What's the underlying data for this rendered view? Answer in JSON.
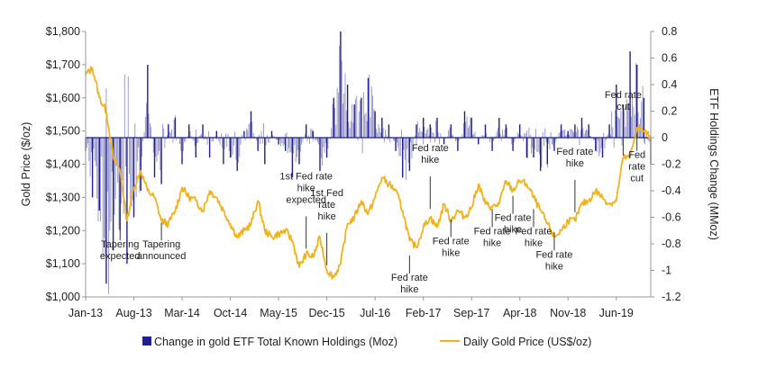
{
  "chart_data": {
    "type": "line",
    "title": "",
    "ylabel": "Gold Price ($/oz)",
    "y2label": "ETF Holdings Change (MMoz)",
    "ylim": [
      1000,
      1800
    ],
    "y2lim": [
      -1.2,
      0.8
    ],
    "y_ticks": [
      "$1,000",
      "$1,100",
      "$1,200",
      "$1,300",
      "$1,400",
      "$1,500",
      "$1,600",
      "$1,700",
      "$1,800"
    ],
    "y2_ticks": [
      "-1.2",
      "-1",
      "-0.8",
      "-0.6",
      "-0.4",
      "-0.2",
      "0",
      "0.2",
      "0.4",
      "0.6",
      "0.8"
    ],
    "x_ticks": [
      {
        "date": "2013-01",
        "label": "Jan-13"
      },
      {
        "date": "2013-08",
        "label": "Aug-13"
      },
      {
        "date": "2014-03",
        "label": "Mar-14"
      },
      {
        "date": "2014-10",
        "label": "Oct-14"
      },
      {
        "date": "2015-05",
        "label": "May-15"
      },
      {
        "date": "2015-12",
        "label": "Dec-15"
      },
      {
        "date": "2016-07",
        "label": "Jul-16"
      },
      {
        "date": "2017-02",
        "label": "Feb-17"
      },
      {
        "date": "2017-09",
        "label": "Sep-17"
      },
      {
        "date": "2018-04",
        "label": "Apr-18"
      },
      {
        "date": "2018-11",
        "label": "Nov-18"
      },
      {
        "date": "2019-06",
        "label": "Jun-19"
      }
    ],
    "x_range": [
      "2013-01",
      "2019-11"
    ],
    "series": [
      {
        "name": "Daily Gold Price (US$/oz)",
        "axis": "left",
        "color": "#f2b21a",
        "points": [
          [
            "2013-01",
            1670
          ],
          [
            "2013-02",
            1690
          ],
          [
            "2013-03",
            1600
          ],
          [
            "2013-04",
            1560
          ],
          [
            "2013-05",
            1420
          ],
          [
            "2013-06",
            1380
          ],
          [
            "2013-07",
            1230
          ],
          [
            "2013-08",
            1330
          ],
          [
            "2013-09",
            1380
          ],
          [
            "2013-10",
            1320
          ],
          [
            "2013-11",
            1300
          ],
          [
            "2013-12",
            1230
          ],
          [
            "2014-01",
            1220
          ],
          [
            "2014-02",
            1260
          ],
          [
            "2014-03",
            1330
          ],
          [
            "2014-04",
            1300
          ],
          [
            "2014-05",
            1290
          ],
          [
            "2014-06",
            1260
          ],
          [
            "2014-07",
            1320
          ],
          [
            "2014-08",
            1300
          ],
          [
            "2014-09",
            1260
          ],
          [
            "2014-10",
            1220
          ],
          [
            "2014-11",
            1180
          ],
          [
            "2014-12",
            1200
          ],
          [
            "2015-01",
            1220
          ],
          [
            "2015-02",
            1290
          ],
          [
            "2015-03",
            1200
          ],
          [
            "2015-04",
            1180
          ],
          [
            "2015-05",
            1190
          ],
          [
            "2015-06",
            1200
          ],
          [
            "2015-07",
            1170
          ],
          [
            "2015-08",
            1090
          ],
          [
            "2015-09",
            1130
          ],
          [
            "2015-10",
            1120
          ],
          [
            "2015-11",
            1180
          ],
          [
            "2015-12",
            1080
          ],
          [
            "2016-01",
            1060
          ],
          [
            "2016-02",
            1100
          ],
          [
            "2016-03",
            1220
          ],
          [
            "2016-04",
            1240
          ],
          [
            "2016-05",
            1290
          ],
          [
            "2016-06",
            1250
          ],
          [
            "2016-07",
            1300
          ],
          [
            "2016-08",
            1360
          ],
          [
            "2016-09",
            1340
          ],
          [
            "2016-10",
            1320
          ],
          [
            "2016-11",
            1260
          ],
          [
            "2016-12",
            1170
          ],
          [
            "2017-01",
            1150
          ],
          [
            "2017-02",
            1210
          ],
          [
            "2017-03",
            1240
          ],
          [
            "2017-04",
            1210
          ],
          [
            "2017-05",
            1280
          ],
          [
            "2017-06",
            1230
          ],
          [
            "2017-07",
            1260
          ],
          [
            "2017-08",
            1240
          ],
          [
            "2017-09",
            1270
          ],
          [
            "2017-10",
            1340
          ],
          [
            "2017-11",
            1280
          ],
          [
            "2017-12",
            1270
          ],
          [
            "2018-01",
            1280
          ],
          [
            "2018-02",
            1350
          ],
          [
            "2018-03",
            1320
          ],
          [
            "2018-04",
            1350
          ],
          [
            "2018-05",
            1340
          ],
          [
            "2018-06",
            1300
          ],
          [
            "2018-07",
            1260
          ],
          [
            "2018-08",
            1220
          ],
          [
            "2018-09",
            1180
          ],
          [
            "2018-10",
            1200
          ],
          [
            "2018-11",
            1230
          ],
          [
            "2018-12",
            1230
          ],
          [
            "2019-01",
            1280
          ],
          [
            "2019-02",
            1290
          ],
          [
            "2019-03",
            1320
          ],
          [
            "2019-04",
            1300
          ],
          [
            "2019-05",
            1280
          ],
          [
            "2019-06",
            1290
          ],
          [
            "2019-07",
            1420
          ],
          [
            "2019-08",
            1420
          ],
          [
            "2019-09",
            1510
          ],
          [
            "2019-10",
            1500
          ],
          [
            "2019-11",
            1480
          ]
        ]
      },
      {
        "name": "Change in gold ETF Total Known Holdings (Moz)",
        "axis": "right",
        "type": "bar",
        "color": "#1f1f8f",
        "points": [
          [
            "2013-01",
            -0.1
          ],
          [
            "2013-02",
            -0.45
          ],
          [
            "2013-03",
            -0.55
          ],
          [
            "2013-04",
            -1.1
          ],
          [
            "2013-05",
            -0.85
          ],
          [
            "2013-06",
            -0.7
          ],
          [
            "2013-07",
            -0.95
          ],
          [
            "2013-08",
            -0.6
          ],
          [
            "2013-09",
            -0.4
          ],
          [
            "2013-10",
            0.55
          ],
          [
            "2013-11",
            -0.3
          ],
          [
            "2013-12",
            -0.35
          ],
          [
            "2014-01",
            0.1
          ],
          [
            "2014-02",
            0.15
          ],
          [
            "2014-03",
            -0.2
          ],
          [
            "2014-04",
            0.1
          ],
          [
            "2014-05",
            -0.15
          ],
          [
            "2014-06",
            0.1
          ],
          [
            "2014-07",
            -0.15
          ],
          [
            "2014-08",
            0.05
          ],
          [
            "2014-09",
            -0.2
          ],
          [
            "2014-10",
            -0.15
          ],
          [
            "2014-11",
            -0.25
          ],
          [
            "2014-12",
            0.05
          ],
          [
            "2015-01",
            0.2
          ],
          [
            "2015-02",
            -0.1
          ],
          [
            "2015-03",
            -0.2
          ],
          [
            "2015-04",
            0.05
          ],
          [
            "2015-05",
            -0.05
          ],
          [
            "2015-06",
            -0.1
          ],
          [
            "2015-07",
            -0.3
          ],
          [
            "2015-08",
            -0.2
          ],
          [
            "2015-09",
            0.1
          ],
          [
            "2015-10",
            0.05
          ],
          [
            "2015-11",
            -0.25
          ],
          [
            "2015-12",
            -0.15
          ],
          [
            "2016-01",
            0.3
          ],
          [
            "2016-02",
            0.8
          ],
          [
            "2016-03",
            0.4
          ],
          [
            "2016-04",
            0.25
          ],
          [
            "2016-05",
            0.3
          ],
          [
            "2016-06",
            0.45
          ],
          [
            "2016-07",
            0.2
          ],
          [
            "2016-08",
            0.15
          ],
          [
            "2016-09",
            0.1
          ],
          [
            "2016-10",
            -0.1
          ],
          [
            "2016-11",
            -0.3
          ],
          [
            "2016-12",
            -0.25
          ],
          [
            "2017-01",
            0.1
          ],
          [
            "2017-02",
            0.15
          ],
          [
            "2017-03",
            0.1
          ],
          [
            "2017-04",
            0.15
          ],
          [
            "2017-05",
            -0.05
          ],
          [
            "2017-06",
            0.1
          ],
          [
            "2017-07",
            -0.1
          ],
          [
            "2017-08",
            0.2
          ],
          [
            "2017-09",
            0.15
          ],
          [
            "2017-10",
            -0.05
          ],
          [
            "2017-11",
            0.1
          ],
          [
            "2017-12",
            -0.1
          ],
          [
            "2018-01",
            0.15
          ],
          [
            "2018-02",
            0.1
          ],
          [
            "2018-03",
            -0.1
          ],
          [
            "2018-04",
            0.1
          ],
          [
            "2018-05",
            -0.15
          ],
          [
            "2018-06",
            -0.15
          ],
          [
            "2018-07",
            -0.25
          ],
          [
            "2018-08",
            -0.2
          ],
          [
            "2018-09",
            -0.1
          ],
          [
            "2018-10",
            0.1
          ],
          [
            "2018-11",
            0.05
          ],
          [
            "2018-12",
            0.1
          ],
          [
            "2019-01",
            0.15
          ],
          [
            "2019-02",
            0.1
          ],
          [
            "2019-03",
            -0.1
          ],
          [
            "2019-04",
            -0.15
          ],
          [
            "2019-05",
            0.1
          ],
          [
            "2019-06",
            0.4
          ],
          [
            "2019-07",
            0.25
          ],
          [
            "2019-08",
            0.65
          ],
          [
            "2019-09",
            0.55
          ],
          [
            "2019-10",
            0.3
          ],
          [
            "2019-11",
            -0.2
          ]
        ]
      }
    ],
    "annotations": [
      {
        "date": "2013-06",
        "lines": [
          "Tapering",
          "expected"
        ],
        "line_to": 1230
      },
      {
        "date": "2013-12",
        "lines": [
          "Tapering",
          "announced"
        ],
        "line_to": 1230
      },
      {
        "date": "2015-09",
        "lines": [
          "1st Fed rate",
          "hike",
          "expected"
        ],
        "line_to": 1140
      },
      {
        "date": "2015-12",
        "lines": [
          "1st Fed",
          "rate",
          "hike"
        ],
        "line_to": 1090
      },
      {
        "date": "2016-12",
        "lines": [
          "Fed rate",
          "hike"
        ],
        "line_to": 1130
      },
      {
        "date": "2017-03",
        "lines": [
          "Fed rate",
          "hike"
        ],
        "line_to": 1260
      },
      {
        "date": "2017-06",
        "lines": [
          "Fed rate",
          "hike"
        ],
        "line_to": 1240
      },
      {
        "date": "2017-12",
        "lines": [
          "Fed rate",
          "hike"
        ],
        "line_to": 1270
      },
      {
        "date": "2018-03",
        "lines": [
          "Fed rate",
          "hike"
        ],
        "line_to": 1310
      },
      {
        "date": "2018-06",
        "lines": [
          "Fed rate",
          "hike"
        ],
        "line_to": 1270
      },
      {
        "date": "2018-09",
        "lines": [
          "Fed rate",
          "hike"
        ],
        "line_to": 1200
      },
      {
        "date": "2018-12",
        "lines": [
          "Fed rate",
          "hike"
        ],
        "line_to": 1250
      },
      {
        "date": "2019-07",
        "lines": [
          "Fed rate",
          "cut"
        ],
        "line_to": 1420
      },
      {
        "date": "2019-09",
        "lines": [
          "Fed",
          "rate",
          "cut"
        ],
        "line_to": 1500
      }
    ],
    "legend": {
      "placement": "bottom"
    },
    "grid": false
  }
}
